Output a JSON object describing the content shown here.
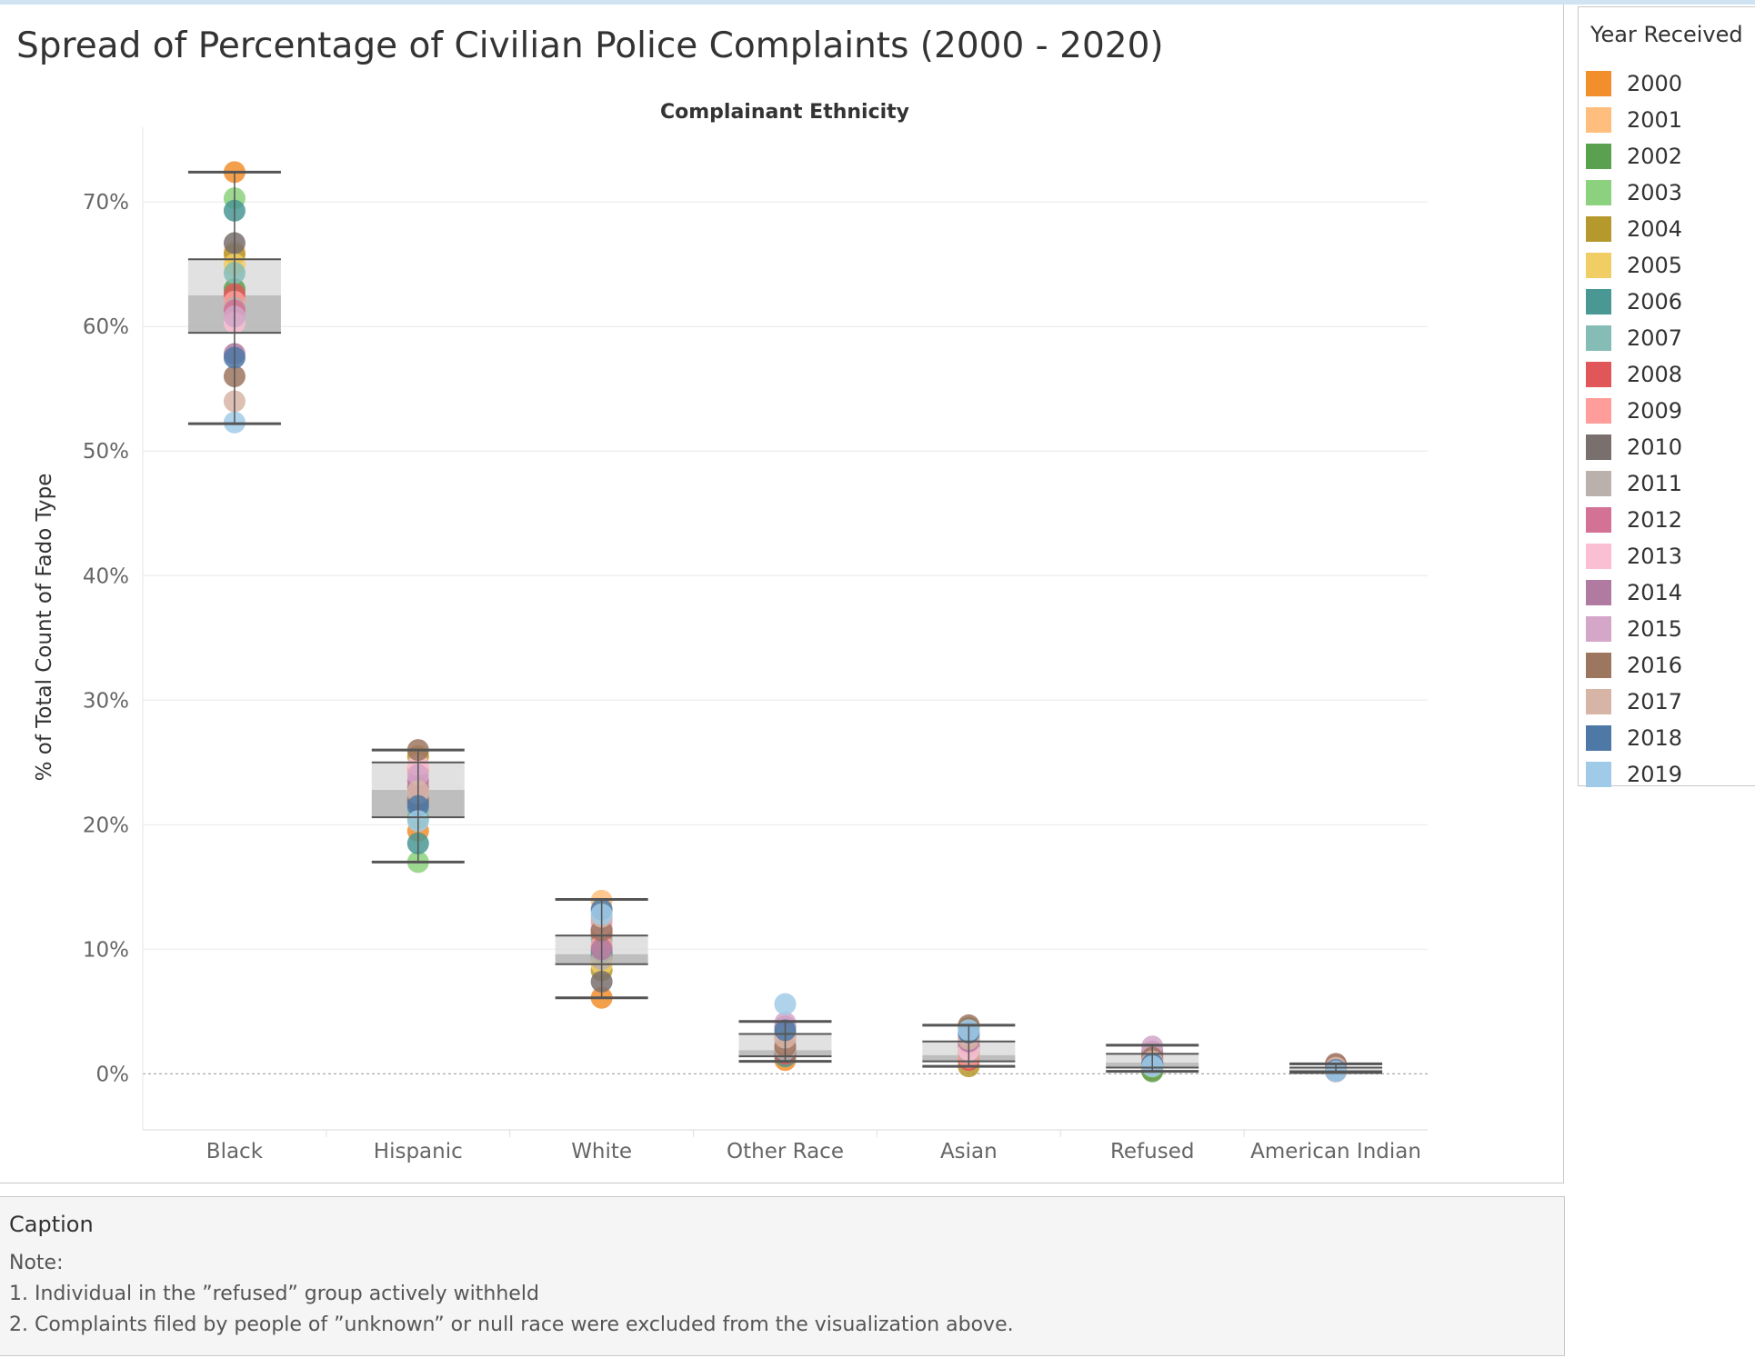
{
  "title": "Spread of Percentage of Civilian Police Complaints (2000 - 2020)",
  "legend": {
    "title": "Year Received",
    "items": [
      {
        "label": "2000",
        "color": "#f28e2b"
      },
      {
        "label": "2001",
        "color": "#ffbe7d"
      },
      {
        "label": "2002",
        "color": "#59a14f"
      },
      {
        "label": "2003",
        "color": "#8cd17d"
      },
      {
        "label": "2004",
        "color": "#b6992d"
      },
      {
        "label": "2005",
        "color": "#f1ce63"
      },
      {
        "label": "2006",
        "color": "#499894"
      },
      {
        "label": "2007",
        "color": "#86bcb6"
      },
      {
        "label": "2008",
        "color": "#e15759"
      },
      {
        "label": "2009",
        "color": "#ff9d9a"
      },
      {
        "label": "2010",
        "color": "#79706e"
      },
      {
        "label": "2011",
        "color": "#bab0ac"
      },
      {
        "label": "2012",
        "color": "#d37295"
      },
      {
        "label": "2013",
        "color": "#fabfd2"
      },
      {
        "label": "2014",
        "color": "#b07aa1"
      },
      {
        "label": "2015",
        "color": "#d4a6c8"
      },
      {
        "label": "2016",
        "color": "#9d7660"
      },
      {
        "label": "2017",
        "color": "#d7b5a6"
      },
      {
        "label": "2018",
        "color": "#4e79a7"
      },
      {
        "label": "2019",
        "color": "#a0cbe8"
      }
    ]
  },
  "caption": {
    "title": "Caption",
    "lines": [
      "Note:",
      "1. Individual in the ”refused” group actively withheld",
      "2. Complaints filed by people of ”unknown” or null race were excluded from the visualization above."
    ]
  },
  "chart_data": {
    "type": "scatter",
    "subtype": "box-and-whisker with dots",
    "title": "Spread of Percentage of Civilian Police Complaints (2000 - 2020)",
    "column_header": "Complainant Ethnicity",
    "ylabel": "% of Total Count of Fado Type",
    "ylim": [
      -4.5,
      76
    ],
    "yticks": [
      0,
      10,
      20,
      30,
      40,
      50,
      60,
      70
    ],
    "ytick_labels": [
      "0%",
      "10%",
      "20%",
      "30%",
      "40%",
      "50%",
      "60%",
      "70%"
    ],
    "grid": true,
    "zero_line": "dotted",
    "legend_position": "right",
    "years": [
      "2000",
      "2001",
      "2002",
      "2003",
      "2004",
      "2005",
      "2006",
      "2007",
      "2008",
      "2009",
      "2010",
      "2011",
      "2012",
      "2013",
      "2014",
      "2015",
      "2016",
      "2017",
      "2018",
      "2019"
    ],
    "categories": [
      {
        "name": "Black",
        "box": {
          "whisker_low": 52.2,
          "q1": 59.5,
          "median": 62.5,
          "q3": 65.4,
          "whisker_high": 72.4
        },
        "values": [
          72.4,
          66.0,
          63.0,
          70.3,
          65.8,
          65.0,
          69.3,
          64.3,
          62.6,
          62.0,
          66.7,
          61.5,
          61.3,
          60.3,
          57.8,
          60.8,
          56.0,
          54.0,
          57.5,
          52.3
        ]
      },
      {
        "name": "Hispanic",
        "box": {
          "whisker_low": 17.0,
          "q1": 20.6,
          "median": 22.8,
          "q3": 25.0,
          "whisker_high": 26.0
        },
        "values": [
          19.5,
          23.0,
          20.5,
          17.0,
          25.5,
          24.3,
          18.5,
          21.2,
          22.0,
          24.5,
          21.8,
          22.5,
          23.5,
          24.8,
          23.0,
          24.0,
          26.0,
          22.7,
          21.5,
          20.3
        ]
      },
      {
        "name": "White",
        "box": {
          "whisker_low": 6.1,
          "q1": 8.8,
          "median": 9.6,
          "q3": 11.1,
          "whisker_high": 14.0
        },
        "values": [
          6.1,
          13.9,
          9.5,
          11.0,
          8.3,
          8.8,
          9.8,
          10.8,
          11.3,
          10.3,
          7.4,
          9.2,
          11.6,
          12.0,
          10.0,
          12.3,
          11.5,
          12.6,
          13.2,
          12.8
        ]
      },
      {
        "name": "Other Race",
        "box": {
          "whisker_low": 1.0,
          "q1": 1.4,
          "median": 1.9,
          "q3": 3.2,
          "whisker_high": 4.2
        },
        "values": [
          1.1,
          1.7,
          2.6,
          3.3,
          2.0,
          2.3,
          1.4,
          2.8,
          1.6,
          2.1,
          1.8,
          1.9,
          3.0,
          2.5,
          3.8,
          4.1,
          2.2,
          2.9,
          3.5,
          5.6
        ]
      },
      {
        "name": "Asian",
        "box": {
          "whisker_low": 0.6,
          "q1": 1.0,
          "median": 1.5,
          "q3": 2.6,
          "whisker_high": 3.9
        },
        "values": [
          1.6,
          1.2,
          3.7,
          2.0,
          0.6,
          1.4,
          2.9,
          1.8,
          1.1,
          1.3,
          2.2,
          1.7,
          2.4,
          1.9,
          2.6,
          3.1,
          3.9,
          2.8,
          3.3,
          3.5
        ]
      },
      {
        "name": "Refused",
        "box": {
          "whisker_low": 0.2,
          "q1": 0.5,
          "median": 0.9,
          "q3": 1.6,
          "whisker_high": 2.3
        },
        "values": [
          0.3,
          0.5,
          0.2,
          0.6,
          0.7,
          0.8,
          0.9,
          1.0,
          1.6,
          1.2,
          0.9,
          1.1,
          1.4,
          1.7,
          1.8,
          2.2,
          1.3,
          1.0,
          0.8,
          0.6
        ]
      },
      {
        "name": "American Indian",
        "box": {
          "whisker_low": 0.1,
          "q1": 0.2,
          "median": 0.3,
          "q3": 0.5,
          "whisker_high": 0.8
        },
        "values": [
          0.2,
          0.3,
          0.4,
          0.3,
          0.2,
          0.3,
          0.4,
          0.5,
          0.6,
          0.5,
          0.4,
          0.3,
          0.2,
          0.4,
          0.6,
          0.7,
          0.8,
          0.5,
          0.3,
          0.2
        ]
      }
    ]
  }
}
